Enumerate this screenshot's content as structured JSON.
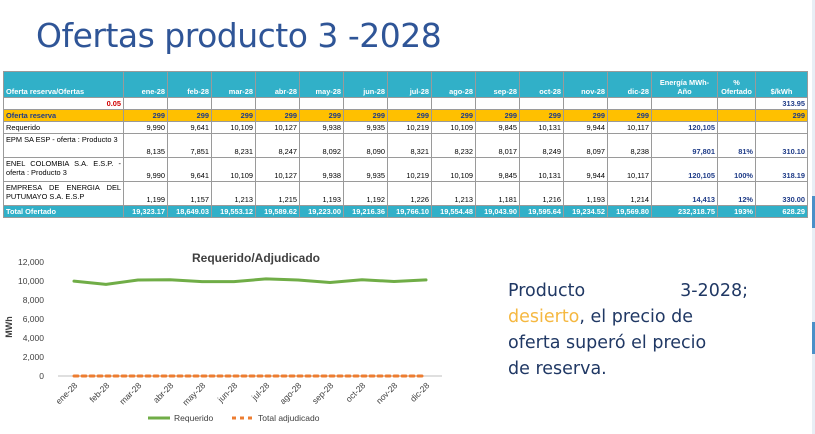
{
  "title": "Ofertas producto 3 -2028",
  "table": {
    "headers": [
      "Oferta reserva/Ofertas",
      "ene-28",
      "feb-28",
      "mar-28",
      "abr-28",
      "may-28",
      "jun-28",
      "jul-28",
      "ago-28",
      "sep-28",
      "oct-28",
      "nov-28",
      "dic-28",
      "Energía MWh-Año",
      "% Ofertado",
      "$/kWh"
    ],
    "reserve_ratio": {
      "value": "0.05",
      "price": "313.95"
    },
    "reserve": {
      "label": "Oferta reserva",
      "cells": [
        "299",
        "299",
        "299",
        "299",
        "299",
        "299",
        "299",
        "299",
        "299",
        "299",
        "299",
        "299",
        "",
        "",
        "299"
      ]
    },
    "required": {
      "label": "Requerido",
      "cells": [
        "9,990",
        "9,641",
        "10,109",
        "10,127",
        "9,938",
        "9,935",
        "10,219",
        "10,109",
        "9,845",
        "10,131",
        "9,944",
        "10,117",
        "120,105",
        "",
        ""
      ]
    },
    "offers": [
      {
        "label": "EPM SA ESP - oferta : Producto 3",
        "cells": [
          "8,135",
          "7,851",
          "8,231",
          "8,247",
          "8,092",
          "8,090",
          "8,321",
          "8,232",
          "8,017",
          "8,249",
          "8,097",
          "8,238",
          "97,801",
          "81%",
          "310.10"
        ]
      },
      {
        "label": "ENEL COLOMBIA S.A. E.S.P. - oferta : Producto 3",
        "cells": [
          "9,990",
          "9,641",
          "10,109",
          "10,127",
          "9,938",
          "9,935",
          "10,219",
          "10,109",
          "9,845",
          "10,131",
          "9,944",
          "10,117",
          "120,105",
          "100%",
          "318.19"
        ]
      },
      {
        "label": "EMPRESA DE ENERGIA DEL PUTUMAYO S.A. E.S.P",
        "cells": [
          "1,199",
          "1,157",
          "1,213",
          "1,215",
          "1,193",
          "1,192",
          "1,226",
          "1,213",
          "1,181",
          "1,216",
          "1,193",
          "1,214",
          "14,413",
          "12%",
          "330.00"
        ]
      }
    ],
    "total": {
      "label": "Total Ofertado",
      "cells": [
        "19,323.17",
        "18,649.03",
        "19,553.12",
        "19,589.62",
        "19,223.00",
        "19,216.36",
        "19,766.10",
        "19,554.48",
        "19,043.90",
        "19,595.64",
        "19,234.52",
        "19,569.80",
        "232,318.75",
        "193%",
        "628.29"
      ]
    }
  },
  "chart_data": {
    "type": "line",
    "title": "Requerido/Adjudicado",
    "ylabel": "MWh",
    "xlabel": "",
    "ylim": [
      0,
      12000
    ],
    "yticks": [
      "0",
      "2,000",
      "4,000",
      "6,000",
      "8,000",
      "10,000",
      "12,000"
    ],
    "ytick_values": [
      0,
      2000,
      4000,
      6000,
      8000,
      10000,
      12000
    ],
    "categories": [
      "ene-28",
      "feb-28",
      "mar-28",
      "abr-28",
      "may-28",
      "jun-28",
      "jul-28",
      "ago-28",
      "sep-28",
      "oct-28",
      "nov-28",
      "dic-28"
    ],
    "series": [
      {
        "name": "Requerido",
        "color": "#70ad47",
        "style": "solid",
        "values": [
          9990,
          9641,
          10109,
          10127,
          9938,
          9935,
          10219,
          10109,
          9845,
          10131,
          9944,
          10117
        ]
      },
      {
        "name": "Total adjudicado",
        "color": "#ed7d31",
        "style": "dashed",
        "values": [
          0,
          0,
          0,
          0,
          0,
          0,
          0,
          0,
          0,
          0,
          0,
          0
        ]
      }
    ],
    "grid": false,
    "legend": "bottom"
  },
  "comment": {
    "line1_left": "Producto",
    "line1_right": "3-2028;",
    "highlight": "desierto",
    "line2_rest": ", el precio de",
    "line3": "oferta superó el precio",
    "line4": "de reserva."
  },
  "colors": {
    "title": "#2f5597",
    "table_header": "#31b0c8",
    "reserve_row": "#ffc000",
    "highlight": "#f5b841",
    "comment_text": "#203864"
  }
}
